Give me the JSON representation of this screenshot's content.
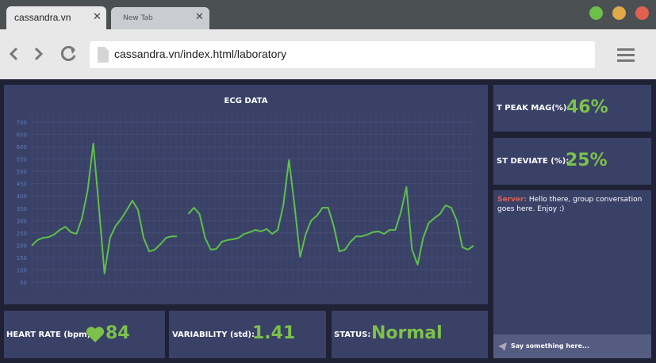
{
  "browser": {
    "tabs": [
      {
        "title": "cassandra.vn"
      },
      {
        "title": "New Tab"
      }
    ],
    "url": "cassandra.vn/index.html/laboratory"
  },
  "chart_data": {
    "type": "line",
    "title": "ECG DATA",
    "color": "#5cc04a",
    "values": [
      198,
      221,
      230,
      233,
      243,
      262,
      275,
      253,
      246,
      311,
      423,
      613,
      359,
      85,
      230,
      278,
      307,
      343,
      381,
      343,
      230,
      175,
      182,
      204,
      230,
      236,
      236,
      null,
      327,
      352,
      327,
      230,
      182,
      185,
      214,
      221,
      224,
      230,
      246,
      253,
      262,
      256,
      266,
      246,
      262,
      365,
      546,
      359,
      153,
      246,
      301,
      320,
      352,
      352,
      278,
      175,
      182,
      214,
      236,
      236,
      243,
      253,
      256,
      246,
      262,
      262,
      333,
      436,
      182,
      121,
      230,
      291,
      310,
      327,
      362,
      352,
      301,
      192,
      182,
      198
    ],
    "ylim": [
      50,
      700
    ],
    "yticks": [
      50,
      100,
      150,
      200,
      250,
      300,
      350,
      400,
      450,
      500,
      550,
      600,
      650,
      700
    ],
    "grid": true
  },
  "stats": {
    "t_peak": {
      "label": "T PEAK MAG(%):",
      "value": "46%"
    },
    "st_deviate": {
      "label": "ST DEVIATE (%):",
      "value": "25%"
    },
    "heart_rate": {
      "label": "HEART RATE (bpm):",
      "value": "84"
    },
    "variability": {
      "label": "VARIABILITY (std):",
      "value": "1.41"
    },
    "status": {
      "label": "STATUS:",
      "value": "Normal"
    }
  },
  "chat": {
    "messages": [
      {
        "sender": "Server:",
        "text": "Hello there, group conversation goes here. Enjoy :)"
      }
    ],
    "placeholder": "Say something here..."
  }
}
